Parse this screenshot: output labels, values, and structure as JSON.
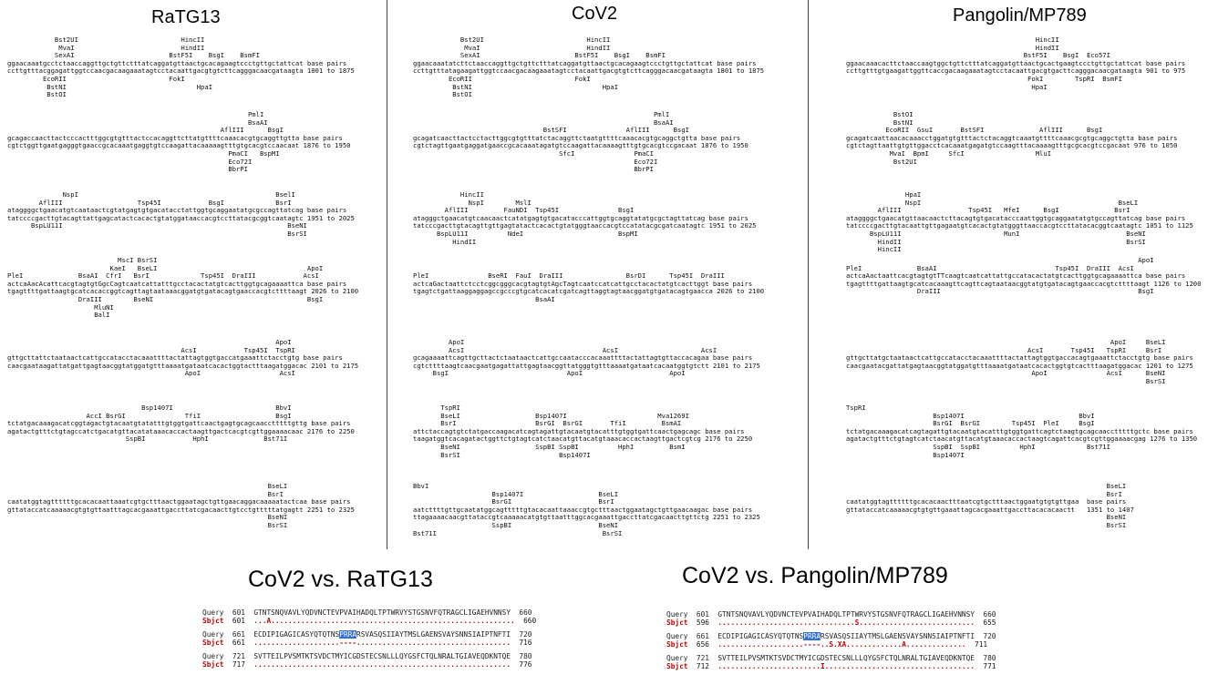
{
  "panels": [
    {
      "title": "RaTG13",
      "blocks": [
        {
          "lines": [
            "            Bst2UI                          HincII",
            "             MvaI                           HindII",
            "            SexAI                        BstF5I    BsgI    BsmFI",
            "ggaacaaatgcctctaaccaggttgctgttctttatcaggatgttaactgcacagaagtccctgttgctattcat base pairs",
            "ccttgtttacggagattggtccaacgacaagaaatagtcctacaattgacgtgtcttcagggacaacgataagta 1801 to 1875",
            "         EcoRII                          FokI",
            "          BstNI                                 HpaI",
            "          BstOI"
          ]
        },
        {
          "lines": [
            "                                                             PmlI",
            "                                                             BsaAI",
            "                                                      AflIII      BsgI",
            "gcagaccaacttactcccactttggcgtgtttactccacaggttcttatgttttcaaacacgtgcaggttgtta base pairs",
            "cgtctggttgaatgagggtgaaccgcacaaatgaggtgtccaagattacaaaaagtttgtgcacgtccaacaat 1876 to 1950",
            "                                                        PmaCI   BspMI",
            "                                                        Eco72I",
            "                                                        BbrPI"
          ]
        },
        {
          "lines": [
            "              NspI                                                  BselI",
            "        AflIII                   Tsp45I            BsgI             BsrI",
            "ataggggctgaacatgtcaataactcgtatgagtgtgacatacctattggtgcaggaatatgcgccagttatcag base pairs",
            "tatccccgacttgtacagttattgagcatactcacactgtatggataaccacgtccttatacgcggtcaatagtc 1951 to 2025",
            "      BspLU11I                                                         BseNI",
            "                                                                       BsrSI"
          ]
        },
        {
          "lines": [
            "                            MscI BsrSI",
            "                          KaeI   BseLI                                      ApoI",
            "PleI              BsaAI  CfrI   BsrI             Tsp45I  DraIII            AcsI",
            "actcaAacAcattcacgtagtgtGgcCagtcaatcattatttgcctacactatgtcacttggtgcagaaaattca base pairs",
            "tgagttttgattaagtgcatcacaccggtcagttagtaataaacggatgtgatacagtgaaccacgtcttttaagt 2026 to 2100",
            "                  DraIII        BseNI                                       BsgI",
            "                      MluNI",
            "                      BalI"
          ]
        },
        {
          "lines": [
            "                                                                    ApoI",
            "                                            AcsI            Tsp45I  TspRI",
            "gttgcttattctaataactcattgccatacctacaaattttactattagtggtgaccatgaaattctacctgtg base pairs",
            "caacgaataagattatgattgagtaacggtatggatgtttaaaatgataatcacactggtactttaagatggacac 2101 to 2175",
            "                                             ApoI                    AcsI"
          ]
        },
        {
          "lines": [
            "                                  Bsp1407I                          BbvI",
            "                    AccI BsrGI               TfiI                   BsgI",
            "tctatgacaaagacatcggtagactgtacaatgtatatttgtggtgattcaactgagtgcagcaacctttttgttg base pairs",
            "agatactgtttctgtagccatctgacatgttacatataaacaccactaagttgactcacgtcgttggaaaacaac 2176 to 2250",
            "                              SspBI            HphI              Bst71I"
          ]
        },
        {
          "lines": [
            "                                                                  BseLI",
            "                                                                  BsrI",
            "caatatggtagttttttgcacacaattaaatcgtgctttaactggaatagctgttgaacaggacaaaaatactcaa base pairs",
            "gttataccatcaaaaacgtgtgttaatttagcacgaaattgaccttatcgacaacttgtcctgtttttatgagtt 2251 to 2325",
            "                                                                  BseNI",
            "                                                                  BsrSI"
          ]
        }
      ]
    },
    {
      "title": "CoV2",
      "blocks": [
        {
          "lines": [
            "            Bst2UI                          HincII",
            "             MvaI                           HindII",
            "            SexAI                        BstF5I    BsgI    BsmFI",
            "ggaacaaatatcttctaaccaggttgctgttctttatcaggatgttaactgcacagaagtccctgttgctattcat base pairs",
            "ccttgtttatagaagattggtccaacgacaagaaatagtcctacaattgacgtgtcttcagggacaacgataagta 1801 to 1875",
            "         EcoRII                          FokI",
            "          BstNI                                 HpaI",
            "          BstOI"
          ]
        },
        {
          "lines": [
            "                                                             PmlI",
            "                                                             BsaAI",
            "                                 BstSFI               AflIII      BsgI",
            "gcagatcaacttactcctacttggcgtgtttatctacaggttctaatgttttcaaacacgtgcaggctgtta base pairs",
            "cgtctagttgaatgaggatgaaccgcacaaatagatgtccaagattacaaaagtttgtgcacgtccgacaat 1876 to 1950",
            "                                     SfcI               PmaCI",
            "                                                        Eco72I",
            "                                                        BbrPI"
          ]
        },
        {
          "lines": [
            "            HincII",
            "              NspI        MslI",
            "        AflIII         FauNDI  Tsp45I               BsgI",
            "atagggctgaacatgtcaacaactcatatgagtgtgacatacccattggtgcaggtatatgcgctagttatcag base pairs",
            "tatcccgacttgtacagttgttgagtatactcacactgtatgggtaaccacgtccatatacgcgatcaatagtc 1951 to 2025",
            "      BspLU11I          NdeI                        BspMI",
            "          HindII"
          ]
        },
        {
          "lines": [
            "",
            "",
            "PleI               BseRI  FauI  DraIII                BsrDI      Tsp45I  DraIII",
            "actcaGactaattctcctcggcgggcacgtagtgtAgcTagtcaatccatcattgcctacactatgtcacttggt base pairs",
            "tgagtctgattaaggaggagccgcccgtgcatcacatcgatcagttaggtagtaacggatgtgatacagtgaacca 2026 to 2100",
            "                               BsaAI"
          ]
        },
        {
          "lines": [
            "         ApoI",
            "         AcsI                                   AcsI                     AcsI",
            "gcagaaaattcagttgcttactctaataactcattgccaatacccacaaattttactattagtgttaccacagaa base pairs",
            "cgtcttttaagtcaacgaatgagattattgagtaacggttatgggtgtttaaaatgataatcacaatggtgtctt 2101 to 2175",
            "     BsgI                              ApoI                      ApoI"
          ]
        },
        {
          "lines": [
            "       TspRI",
            "       BseLI                   Bsp1407I                       Mva1269I",
            "       BsrI                    BsrGI  BsrGI       TfiI         BsmAI",
            "attctaccagtgtctatgaccaagacatcagtagattgtacaatgtacatttgtggtgattcaactgagcagc base pairs",
            "taagatggtcacagatactggttctgtagtcatctaacatgttacatgtaaacaccactaagttgactcgtcg 2176 to 2250",
            "       BseNI                   SspBI SspBI          HphI         BsmI",
            "       BsrSI                         Bsp1407I"
          ]
        },
        {
          "lines": [
            "BbvI",
            "                    Bsp1407I                   BseLI",
            "                    BsrGI                      BsrI",
            "aatcttttgttgcaatatggcagtttttgtacacaattaaaccgtgctttaactggaatagctgttgaacaagac base pairs",
            "ttagaaaacaacgttataccgtcaaaaacatgtgttaatttggcacgaaattgaccttatcgacaacttgttctg 2251 to 2325",
            "                    SspBI                      BseNI",
            "Bst71I                                          BsrSI"
          ]
        }
      ]
    },
    {
      "title": "Pangolin/MP789",
      "blocks": [
        {
          "lines": [
            "                                                HincII",
            "                                                HindII",
            "                                             BstF5I    BsgI  Eco57I",
            "ggaacaaacacttctaaccaagtggctgttctttatcaggatgttaactgcactgaagtccctgttgctattcat base pairs",
            "ccttgtttgtgaagattggttcaccgacaagaaatagtcctacaattgacgtgacttcagggacaacgataagta 901 to 975",
            "                                              FokI        TspRI  BsmFI",
            "                                               HpaI"
          ]
        },
        {
          "lines": [
            "            BstOI",
            "            BstNI",
            "          EcoRII  GsuI       BstSFI              AflIII      BsgI",
            "gcagatcaattaacacaaacctggatgtgtttactctacaggtcaaatgttttcaaacgcgtgcaggctgtta base pairs",
            "cgtctagttaattgtgttggacctcacaaatgagatgtccaagtttacaaaagtttgcgcacgtccgacaat 976 to 1050",
            "           MvaI  BpmI     SfcI                  MluI",
            "            Bst2UI"
          ]
        },
        {
          "lines": [
            "               HpaI",
            "               NspI                                                  BseLI",
            "        AflIII                 Tsp45I   MfeI      BsgI              BsrI",
            "ataggggctgaacatgttaacaactcttacagtgtgacatacccaattggtgcaggaatatgtgccagttatcag base pairs",
            "tatccccgacttgtacaattgttgagaatgtcacactgtatgggttaaccacgtccttatacacggtcaatagtc 1051 to 1125",
            "      BspLU11I                          MunI                           BseNI",
            "        HindII                                                         BsrSI",
            "        HincII"
          ]
        },
        {
          "lines": [
            "                                                                          ApoI",
            "PleI              BsaAI                              Tsp45I  DraIII  AcsI",
            "actcaAactaattcacgtagtgtTTcaagtcaatcattattgccatacactatgtcacttggtgcagaaaattca base pairs",
            "tgagttttgattaagtgcatcacaaagttcagttcagtaataacggtatgtgatacagtgaaccacgtcttttaagt 1126 to 1200",
            "                  DraIII                                                  BsgI"
          ]
        },
        {
          "lines": [
            "                                                                   ApoI     BseLI",
            "                                              AcsI       Tsp45I   TspRI     BsrI",
            "gttgcttatgctaataactcattgccatacctacaaattttactattagtggtgaccacagtgaaattctacctgtg base pairs",
            "caacgaatacgattatgagtaacggtatggatgtttaaaatgataatcacactggtgtcactttaagatggacac 1201 to 1275",
            "                                               ApoI               AcsI      BseNI",
            "                                                                            BsrSI"
          ]
        },
        {
          "lines": [
            "TspRI",
            "                      Bsp1407I                             BbvI",
            "                      BsrGI  BsrGI        Tsp45I  PleI     BsgI",
            "tctatgacaaagacatcagtagattgtacaatgtacatttgtggtgattcagtctaagtgcagcaacctttttgctc base pairs",
            "agatactgtttctgtagtcatctaacatgttacatgtaaacaccactaagtcagattcacgtcgttggaaaacgag 1276 to 1350",
            "                      SspBI  SspBI          HphI             Bst71I",
            "                      Bsp1407I"
          ]
        },
        {
          "lines": [
            "                                                                  BseLI",
            "                                                                  BsrI",
            "caatatggtagttttttgcacacaactttaatcgtgctttaactggaatgtgtgttgaa  base pairs",
            "gttataccatcaaaaacgtgtgttgaaattagcacgaaattgaccttacacacaactt   1351 to 1407",
            "                                                                  BseNI",
            "                                                                  BsrSI"
          ]
        }
      ]
    }
  ],
  "comparisons": [
    {
      "title": "CoV2 vs. RaTG13",
      "rows": [
        {
          "q_label": "Query",
          "q_start": "601",
          "q_seq_a": "GTNTSNQVAVLYQDVNCTEVPVAIHADQLTPTWRVYSTGSNVFQTRAGCLIGAEHVNNSY",
          "q_hl": "",
          "q_seq_b": "",
          "q_end": "660",
          "s_label": "Sbjct",
          "s_start": "601",
          "s_seq": "...A.........................................................",
          "s_end": "660"
        },
        {
          "q_label": "Query",
          "q_start": "661",
          "q_seq_a": "ECDIPIGAGICASYQTQTNS",
          "q_hl": "PRRA",
          "q_seq_b": "RSVASQSIIAYTMSLGAENSVAYSNNSIAIPTNFTI",
          "q_end": "720",
          "s_label": "Sbjct",
          "s_start": "661",
          "s_seq": "....................----....................................",
          "s_end": "716"
        },
        {
          "q_label": "Query",
          "q_start": "721",
          "q_seq_a": "SVTTEILPVSMTKTSVDCTMYICGDSTECSNLLLQYGSFCTQLNRALTGIAVEQDKNTQE",
          "q_hl": "",
          "q_seq_b": "",
          "q_end": "780",
          "s_label": "Sbjct",
          "s_start": "717",
          "s_seq": "............................................................",
          "s_end": "776"
        }
      ]
    },
    {
      "title": "CoV2 vs. Pangolin/MP789",
      "rows": [
        {
          "q_label": "Query",
          "q_start": "601",
          "q_seq_a": "GTNTSNQVAVLYQDVNCTEVPVAIHADQLTPTWRVYSTGSNVFQTRAGCLIGAEHVNNSY",
          "q_hl": "",
          "q_seq_b": "",
          "q_end": "660",
          "s_label": "Sbjct",
          "s_start": "596",
          "s_seq": "................................S...........................",
          "s_end": "655"
        },
        {
          "q_label": "Query",
          "q_start": "661",
          "q_seq_a": "ECDIPIGAGICASYQTQTNS",
          "q_hl": "PRRA",
          "q_seq_b": "RSVASQSIIAYTMSLGAENSVAYSNNSIAIPTNFTI",
          "q_end": "720",
          "s_label": "Sbjct",
          "s_start": "656",
          "s_seq": "....................----..S.XA.............A..............",
          "s_end": "711"
        },
        {
          "q_label": "Query",
          "q_start": "721",
          "q_seq_a": "SVTTEILPVSMTKTSVDCTMYICGDSTECSNLLLQYGSFCTQLNRALTGIAVEQDKNTQE",
          "q_hl": "",
          "q_seq_b": "",
          "q_end": "780",
          "s_label": "Sbjct",
          "s_start": "712",
          "s_seq": "........................I...................................",
          "s_end": "771"
        }
      ]
    }
  ],
  "colors": {
    "highlight": "#2f6fd6",
    "mismatch": "#c00000",
    "motif_red": "#d00000",
    "motif_blue": "#2f6fd6"
  }
}
